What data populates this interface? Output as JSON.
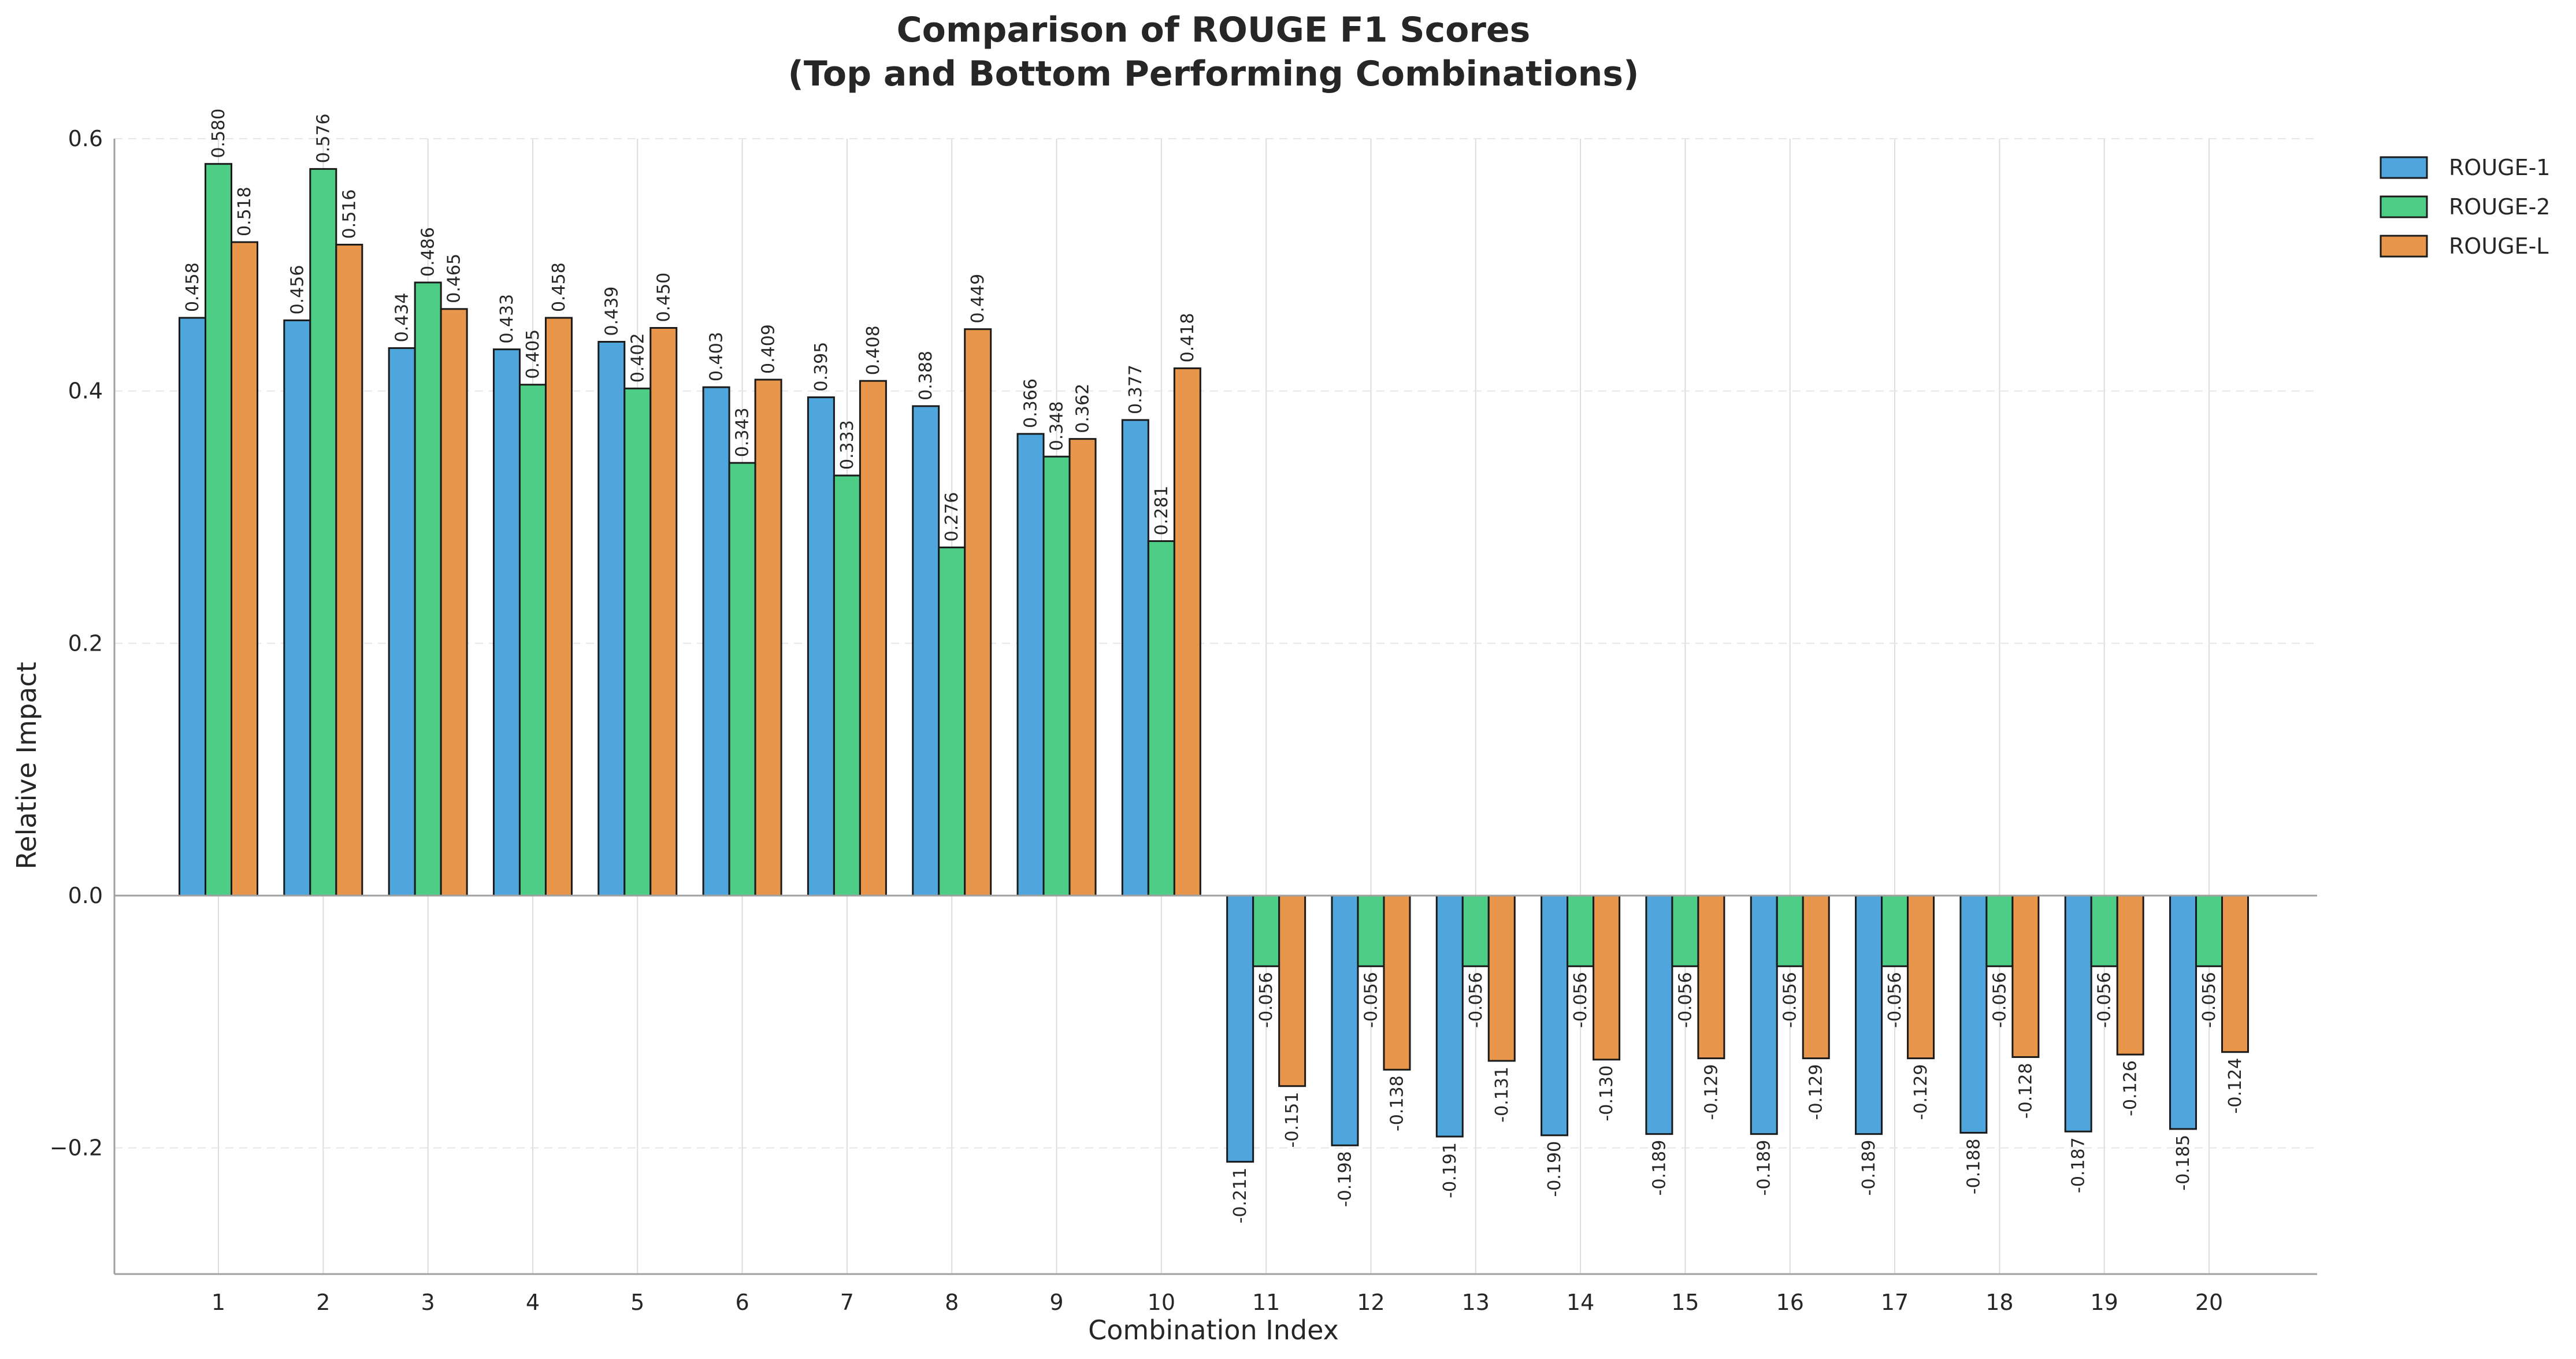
{
  "chart_data": {
    "type": "bar",
    "title": "Comparison of ROUGE F1 Scores",
    "subtitle": "(Top and Bottom Performing Combinations)",
    "xlabel": "Combination Index",
    "ylabel": "Relative Impact",
    "categories": [
      "1",
      "2",
      "3",
      "4",
      "5",
      "6",
      "7",
      "8",
      "9",
      "10",
      "11",
      "12",
      "13",
      "14",
      "15",
      "16",
      "17",
      "18",
      "19",
      "20"
    ],
    "ylim": [
      -0.3,
      0.6
    ],
    "yticks": [
      -0.2,
      0.0,
      0.2,
      0.4,
      0.6
    ],
    "ytick_labels": [
      "−0.2",
      "0.0",
      "0.2",
      "0.4",
      "0.6"
    ],
    "grid": true,
    "legend_position": "top-right, outside plot",
    "series": [
      {
        "name": "ROUGE-1",
        "color": "#4ea6dc",
        "values": [
          0.458,
          0.456,
          0.434,
          0.433,
          0.439,
          0.403,
          0.395,
          0.388,
          0.366,
          0.377,
          -0.211,
          -0.198,
          -0.191,
          -0.19,
          -0.189,
          -0.189,
          -0.189,
          -0.188,
          -0.187,
          -0.185
        ],
        "labels": [
          "0.458",
          "0.456",
          "0.434",
          "0.433",
          "0.439",
          "0.403",
          "0.395",
          "0.388",
          "0.366",
          "0.377",
          "-0.211",
          "-0.198",
          "-0.191",
          "-0.190",
          "-0.189",
          "-0.189",
          "-0.189",
          "-0.188",
          "-0.187",
          "-0.185"
        ]
      },
      {
        "name": "ROUGE-2",
        "color": "#4dcd85",
        "values": [
          0.58,
          0.576,
          0.486,
          0.405,
          0.402,
          0.343,
          0.333,
          0.276,
          0.348,
          0.281,
          -0.056,
          -0.056,
          -0.056,
          -0.056,
          -0.056,
          -0.056,
          -0.056,
          -0.056,
          -0.056,
          -0.056
        ],
        "labels": [
          "0.580",
          "0.576",
          "0.486",
          "0.405",
          "0.402",
          "0.343",
          "0.333",
          "0.276",
          "0.348",
          "0.281",
          "-0.056",
          "-0.056",
          "-0.056",
          "-0.056",
          "-0.056",
          "-0.056",
          "-0.056",
          "-0.056",
          "-0.056",
          "-0.056"
        ]
      },
      {
        "name": "ROUGE-L",
        "color": "#e8964b",
        "values": [
          0.518,
          0.516,
          0.465,
          0.458,
          0.45,
          0.409,
          0.408,
          0.449,
          0.362,
          0.418,
          -0.151,
          -0.138,
          -0.131,
          -0.13,
          -0.129,
          -0.129,
          -0.129,
          -0.128,
          -0.126,
          -0.124
        ],
        "labels": [
          "0.518",
          "0.516",
          "0.465",
          "0.458",
          "0.450",
          "0.409",
          "0.408",
          "0.449",
          "0.362",
          "0.418",
          "-0.151",
          "-0.138",
          "-0.131",
          "-0.130",
          "-0.129",
          "-0.129",
          "-0.129",
          "-0.128",
          "-0.126",
          "-0.124"
        ]
      }
    ]
  }
}
